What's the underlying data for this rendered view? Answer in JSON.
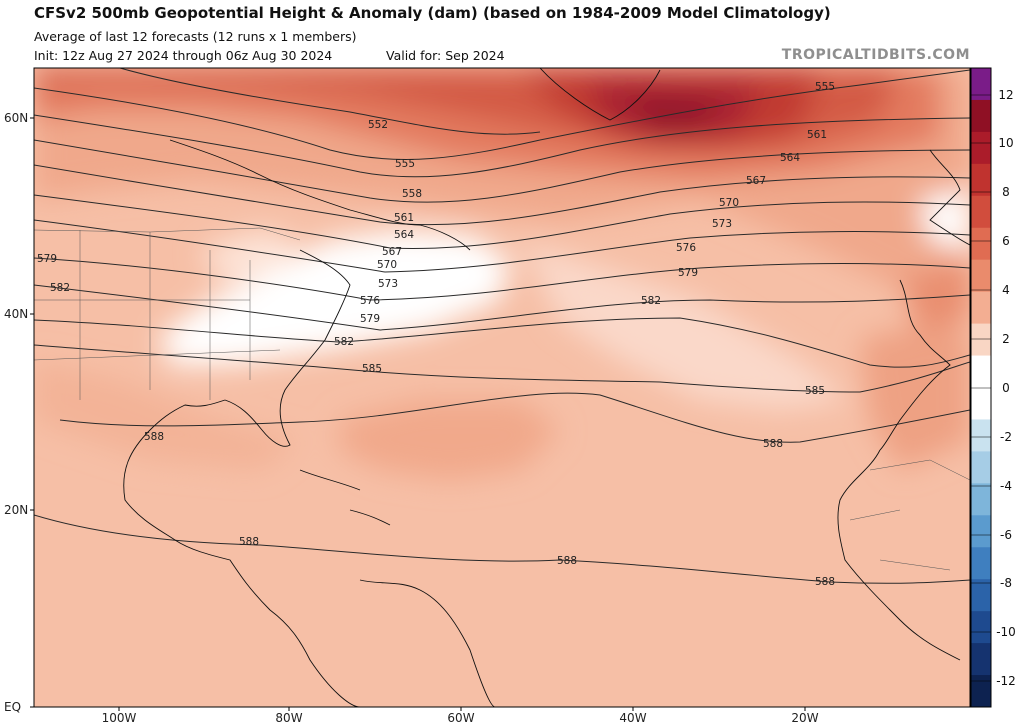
{
  "header": {
    "title": "CFSv2 500mb Geopotential Height & Anomaly (dam) (based on 1984-2009 Model Climatology)",
    "subtitle": "Average of last 12 forecasts (12 runs x 1 members)",
    "init": "Init: 12z Aug 27 2024 through 06z Aug 30 2024",
    "valid": "Valid for: Sep 2024",
    "brand": "TROPICALTIDBITS.COM"
  },
  "map": {
    "lat_labels": [
      "60N",
      "40N",
      "20N",
      "EQ"
    ],
    "lon_labels": [
      "100W",
      "80W",
      "60W",
      "40W",
      "20W"
    ],
    "contour_labels": [
      "552",
      "555",
      "555",
      "558",
      "561",
      "561",
      "564",
      "564",
      "567",
      "567",
      "570",
      "570",
      "573",
      "573",
      "576",
      "576",
      "579",
      "579",
      "579",
      "582",
      "582",
      "582",
      "585",
      "585",
      "588",
      "588",
      "588",
      "588"
    ]
  },
  "colorbar": {
    "labels": [
      "12",
      "10",
      "8",
      "6",
      "4",
      "2",
      "0",
      "-2",
      "-4",
      "-6",
      "-8",
      "-10",
      "-12"
    ],
    "colors": [
      "#7a1c88",
      "#8f1024",
      "#ab1c2a",
      "#c0332f",
      "#d14d3d",
      "#e06c52",
      "#ea8b6c",
      "#f3ae92",
      "#f9d6c4",
      "#ffffff",
      "#ffffff",
      "#c9e2ef",
      "#a6cde6",
      "#7eb5da",
      "#5b9bce",
      "#3f7fbf",
      "#2b63a9",
      "#1e4a8f",
      "#15336f",
      "#0d2250"
    ]
  }
}
